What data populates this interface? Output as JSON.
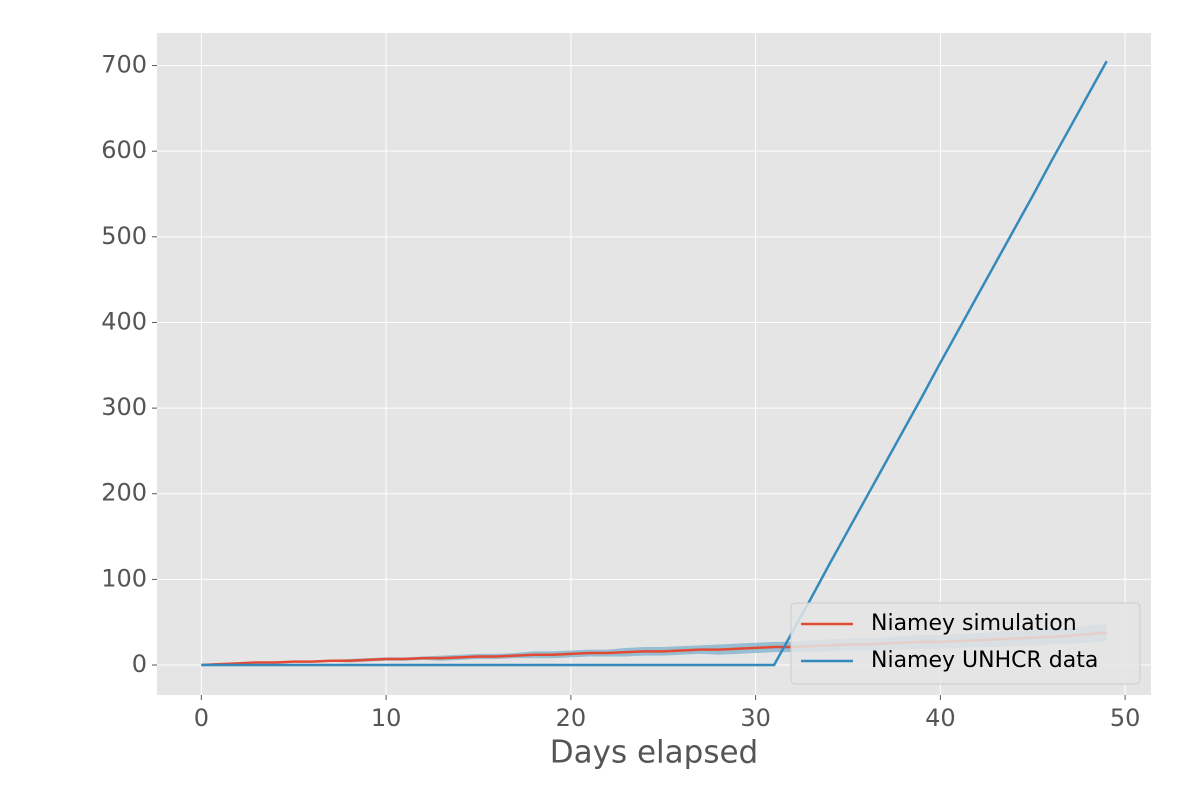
{
  "chart_data": {
    "type": "line",
    "xlabel": "Days elapsed",
    "x": [
      0,
      1,
      2,
      3,
      4,
      5,
      6,
      7,
      8,
      9,
      10,
      11,
      12,
      13,
      14,
      15,
      16,
      17,
      18,
      19,
      20,
      21,
      22,
      23,
      24,
      25,
      26,
      27,
      28,
      29,
      30,
      31,
      32,
      33,
      34,
      35,
      36,
      37,
      38,
      39,
      40,
      41,
      42,
      43,
      44,
      45,
      46,
      47,
      48,
      49
    ],
    "series": [
      {
        "name": "Niamey simulation",
        "color": "#E24A33",
        "values": [
          0,
          1,
          2,
          3,
          3,
          4,
          4,
          5,
          5,
          6,
          7,
          7,
          8,
          8,
          9,
          10,
          10,
          11,
          12,
          12,
          13,
          14,
          14,
          15,
          16,
          16,
          17,
          18,
          18,
          19,
          20,
          21,
          21,
          22,
          23,
          24,
          24,
          25,
          26,
          27,
          27,
          28,
          29,
          30,
          31,
          32,
          33,
          34,
          36,
          38
        ],
        "band": {
          "color": "#7BAFC9",
          "lower": [
            0,
            1,
            2,
            2,
            2,
            3,
            3,
            4,
            3,
            4,
            5,
            5,
            6,
            5,
            6,
            7,
            7,
            8,
            8,
            8,
            9,
            10,
            10,
            10,
            11,
            11,
            12,
            13,
            12,
            13,
            14,
            15,
            15,
            15,
            16,
            17,
            17,
            18,
            18,
            19,
            19,
            20,
            21,
            21,
            22,
            23,
            24,
            25,
            26,
            28
          ],
          "upper": [
            0,
            1,
            2,
            4,
            4,
            5,
            5,
            6,
            7,
            8,
            9,
            9,
            10,
            11,
            12,
            13,
            13,
            14,
            16,
            16,
            17,
            18,
            18,
            20,
            21,
            21,
            22,
            23,
            24,
            25,
            26,
            27,
            27,
            29,
            30,
            31,
            31,
            32,
            34,
            35,
            35,
            36,
            37,
            39,
            40,
            41,
            42,
            43,
            46,
            48
          ]
        }
      },
      {
        "name": "Niamey UNHCR data",
        "color": "#348ABD",
        "values": [
          0,
          0,
          0,
          0,
          0,
          0,
          0,
          0,
          0,
          0,
          0,
          0,
          0,
          0,
          0,
          0,
          0,
          0,
          0,
          0,
          0,
          0,
          0,
          0,
          0,
          0,
          0,
          0,
          0,
          0,
          0,
          0,
          39,
          78,
          118,
          157,
          196,
          235,
          274,
          313,
          353,
          392,
          431,
          470,
          509,
          548,
          588,
          627,
          666,
          705
        ]
      }
    ],
    "xlim": [
      -2.4,
      51.4
    ],
    "xticks": [
      0,
      10,
      20,
      30,
      40,
      50
    ],
    "ylim": [
      -35,
      738
    ],
    "yticks": [
      0,
      100,
      200,
      300,
      400,
      500,
      600,
      700
    ],
    "grid": true,
    "legend": "lower right"
  }
}
